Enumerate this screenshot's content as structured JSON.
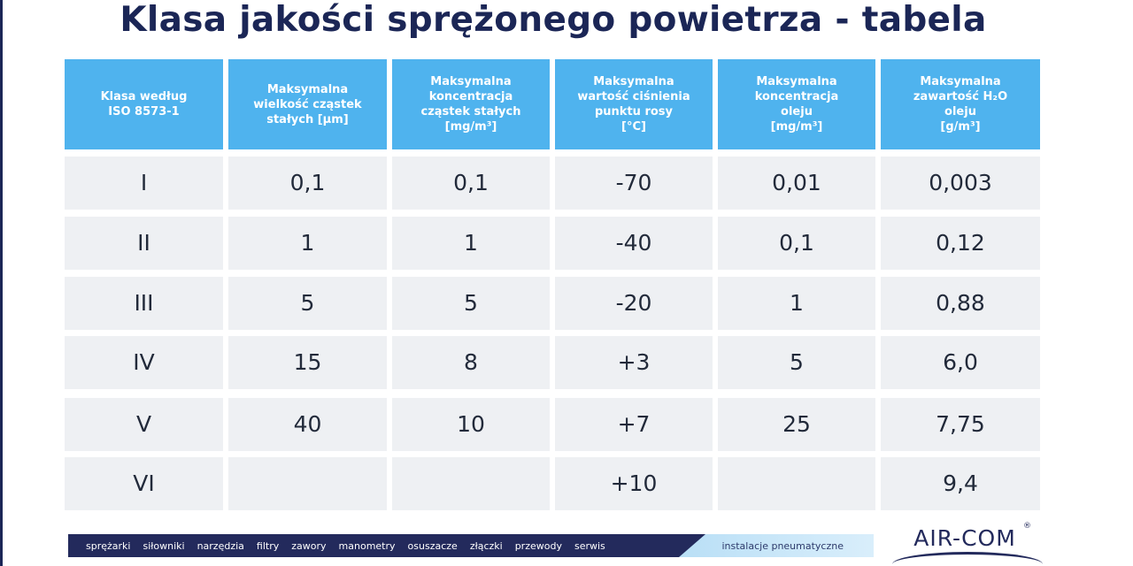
{
  "title": "Klasa jakości sprężonego powietrza - tabela",
  "table": {
    "headers": [
      "Klasa według\nISO 8573-1",
      "Maksymalna\nwielkość cząstek\nstałych [μm]",
      "Maksymalna\nkoncentracja\ncząstek stałych\n[mg/m³]",
      "Maksymalna\nwartość ciśnienia\npunktu rosy\n[°C]",
      "Maksymalna\nkoncentracja\noleju\n[mg/m³]",
      "Maksymalna\nzawartość H₂O\noleju\n[g/m³]"
    ],
    "rows": [
      [
        "I",
        "0,1",
        "0,1",
        "-70",
        "0,01",
        "0,003"
      ],
      [
        "II",
        "1",
        "1",
        "-40",
        "0,1",
        "0,12"
      ],
      [
        "III",
        "5",
        "5",
        "-20",
        "1",
        "0,88"
      ],
      [
        "IV",
        "15",
        "8",
        "+3",
        "5",
        "6,0"
      ],
      [
        "V",
        "40",
        "10",
        "+7",
        "25",
        "7,75"
      ],
      [
        "VI",
        "",
        "",
        "+10",
        "",
        "9,4"
      ]
    ]
  },
  "footer": {
    "items": [
      "sprężarki",
      "siłowniki",
      "narzędzia",
      "filtry",
      "zawory",
      "manometry",
      "osuszacze",
      "złączki",
      "przewody",
      "serwis"
    ],
    "highlight": "instalacje pneumatyczne"
  },
  "logo": {
    "text": "AIR-COM",
    "registered": "®"
  }
}
